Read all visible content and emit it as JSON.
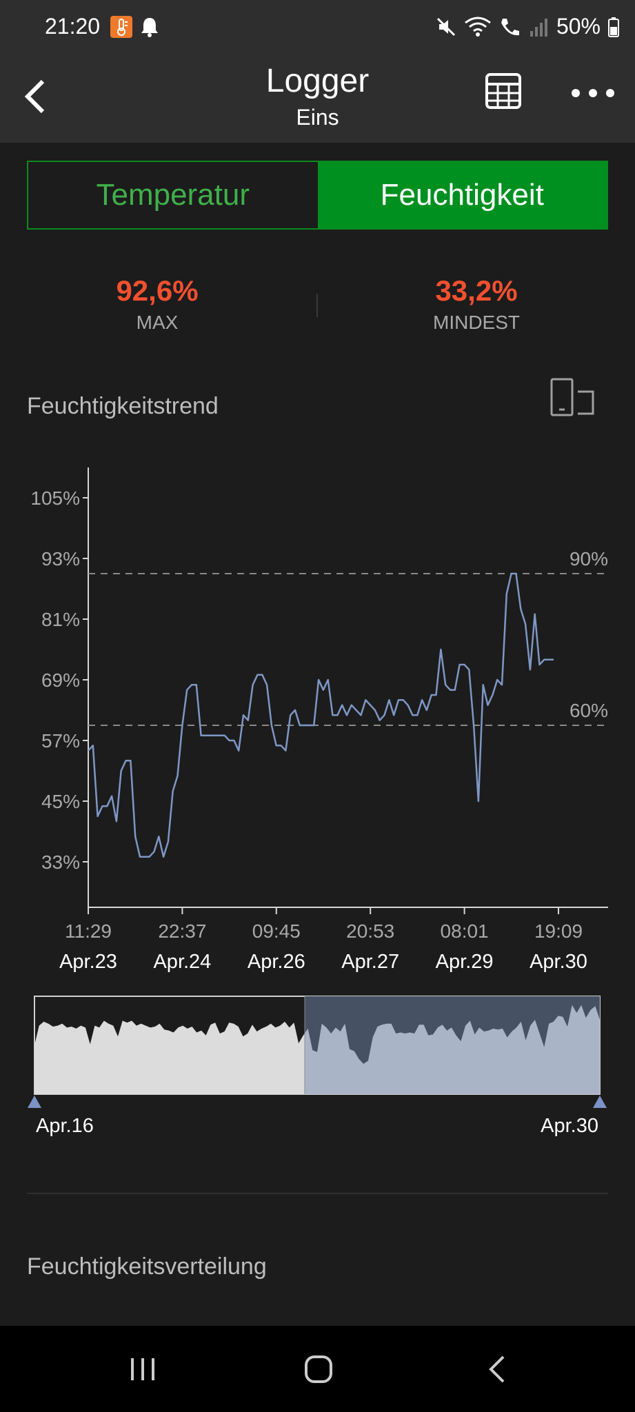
{
  "status_bar": {
    "time": "21:20",
    "battery": "50%"
  },
  "header": {
    "title": "Logger",
    "subtitle": "Eins"
  },
  "tabs": [
    {
      "label": "Temperatur"
    },
    {
      "label": "Feuchtigkeit"
    }
  ],
  "stats": {
    "max": {
      "value": "92,6%",
      "label": "MAX"
    },
    "min": {
      "value": "33,2%",
      "label": "MINDEST"
    }
  },
  "sections": {
    "trend_title": "Feuchtigkeitstrend",
    "distribution_title": "Feuchtigkeitsverteilung"
  },
  "colors": {
    "accent_green": "#009020",
    "stat_red": "#f2502f",
    "line": "#7f97c6"
  },
  "chart_data": {
    "type": "line",
    "y_ticks": [
      "105%",
      "93%",
      "81%",
      "69%",
      "57%",
      "45%",
      "33%"
    ],
    "ylim": [
      24,
      111
    ],
    "x_ticks": [
      {
        "time": "11:29",
        "date": "Apr.23"
      },
      {
        "time": "22:37",
        "date": "Apr.24"
      },
      {
        "time": "09:45",
        "date": "Apr.26"
      },
      {
        "time": "20:53",
        "date": "Apr.27"
      },
      {
        "time": "08:01",
        "date": "Apr.29"
      },
      {
        "time": "19:09",
        "date": "Apr.30"
      }
    ],
    "reference_lines": [
      {
        "value": 90,
        "label": "90%"
      },
      {
        "value": 60,
        "label": "60%"
      }
    ],
    "series": [
      {
        "values": [
          55,
          56,
          42,
          44,
          44,
          46,
          41,
          51,
          53,
          53,
          38,
          34,
          34,
          34,
          35,
          38,
          34,
          37,
          47,
          50,
          60,
          67,
          68,
          68,
          58,
          58,
          58,
          58,
          58,
          58,
          57,
          57,
          55,
          62,
          61,
          68,
          70,
          70,
          68,
          60,
          56,
          56,
          55,
          62,
          63,
          60,
          60,
          60,
          60,
          69,
          67,
          69,
          62,
          62,
          64,
          62,
          64,
          63,
          62,
          65,
          64,
          63,
          61,
          62,
          65,
          62,
          65,
          65,
          64,
          62,
          62,
          65,
          63,
          66,
          66,
          75,
          68,
          67,
          67,
          72,
          72,
          71,
          60,
          45,
          68,
          64,
          66,
          69,
          68,
          86,
          90,
          90,
          83,
          80,
          71,
          82,
          72,
          73,
          73,
          73
        ]
      }
    ],
    "overview": {
      "start_label": "Apr.16",
      "end_label": "Apr.30",
      "values": [
        50,
        70,
        74,
        72,
        69,
        70,
        72,
        68,
        69,
        67,
        70,
        68,
        51,
        70,
        68,
        75,
        72,
        70,
        59,
        75,
        73,
        75,
        70,
        72,
        70,
        68,
        69,
        72,
        66,
        65,
        63,
        68,
        70,
        67,
        69,
        63,
        65,
        60,
        71,
        73,
        62,
        64,
        73,
        72,
        69,
        59,
        62,
        71,
        64,
        67,
        69,
        72,
        68,
        70,
        74,
        68,
        73,
        52,
        60,
        67,
        45,
        43,
        72,
        68,
        62,
        68,
        64,
        72,
        46,
        44,
        36,
        31,
        34,
        58,
        69,
        71,
        72,
        72,
        62,
        63,
        62,
        63,
        62,
        71,
        71,
        60,
        61,
        68,
        71,
        65,
        68,
        60,
        54,
        70,
        75,
        61,
        68,
        64,
        65,
        67,
        66,
        67,
        58,
        64,
        68,
        74,
        55,
        70,
        76,
        62,
        48,
        72,
        74,
        80,
        79,
        69,
        91,
        83,
        91,
        78,
        86,
        90,
        76
      ]
    }
  }
}
